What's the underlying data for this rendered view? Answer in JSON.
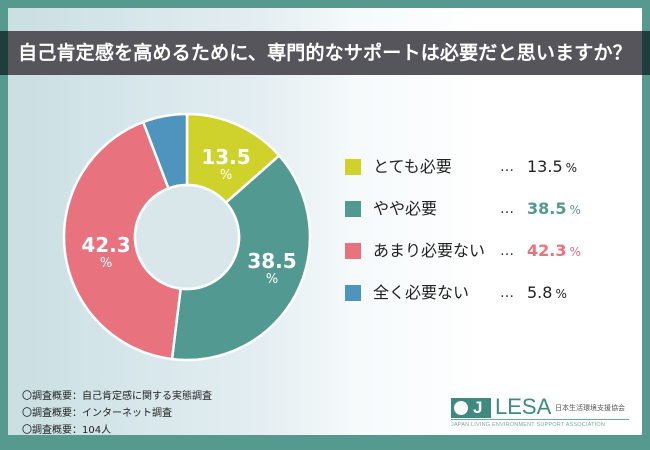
{
  "title": "自己肯定感を高めるために、専門的なサポートは必要だと思いますか？",
  "colors": {
    "frame": "#56998f",
    "title_band": "#57555c",
    "very_necessary": "#cfd22b",
    "somewhat_necessary": "#529a91",
    "not_very_necessary": "#e8727e",
    "not_at_all": "#4f93bf"
  },
  "chart_data": {
    "type": "pie",
    "subtype": "donut",
    "title": "自己肯定感を高めるために、専門的なサポートは必要だと思いますか？",
    "categories": [
      "とても必要",
      "やや必要",
      "あまり必要ない",
      "全く必要ない"
    ],
    "values": [
      13.5,
      38.5,
      42.3,
      5.8
    ],
    "unit": "%",
    "colors": [
      "#cfd22b",
      "#529a91",
      "#e8727e",
      "#4f93bf"
    ],
    "start_angle": "12 o'clock, clockwise",
    "legend_position": "right"
  },
  "slice_labels": [
    {
      "num": "13.5",
      "pct": "%"
    },
    {
      "num": "38.5",
      "pct": "%"
    },
    {
      "num": "42.3",
      "pct": "%"
    }
  ],
  "legend": [
    {
      "label": "とても必要",
      "dots": "…",
      "value": "13.5",
      "unit": "%"
    },
    {
      "label": "やや必要",
      "dots": "…",
      "value": "38.5",
      "unit": "%"
    },
    {
      "label": "あまり必要ない",
      "dots": "…",
      "value": "42.3",
      "unit": "%"
    },
    {
      "label": "全く必要ない",
      "dots": "…",
      "value": "5.8",
      "unit": "%"
    }
  ],
  "notes": [
    "〇調査概要：自己肯定感に関する実態調査",
    "〇調査概要：インターネット調査",
    "〇調査概要：104人"
  ],
  "logo": {
    "j": "J",
    "name": "LESA",
    "jp": "日本生活環境支援協会",
    "en": "JAPAN LIVING ENVIRONMENT SUPPORT ASSOCIATION"
  }
}
